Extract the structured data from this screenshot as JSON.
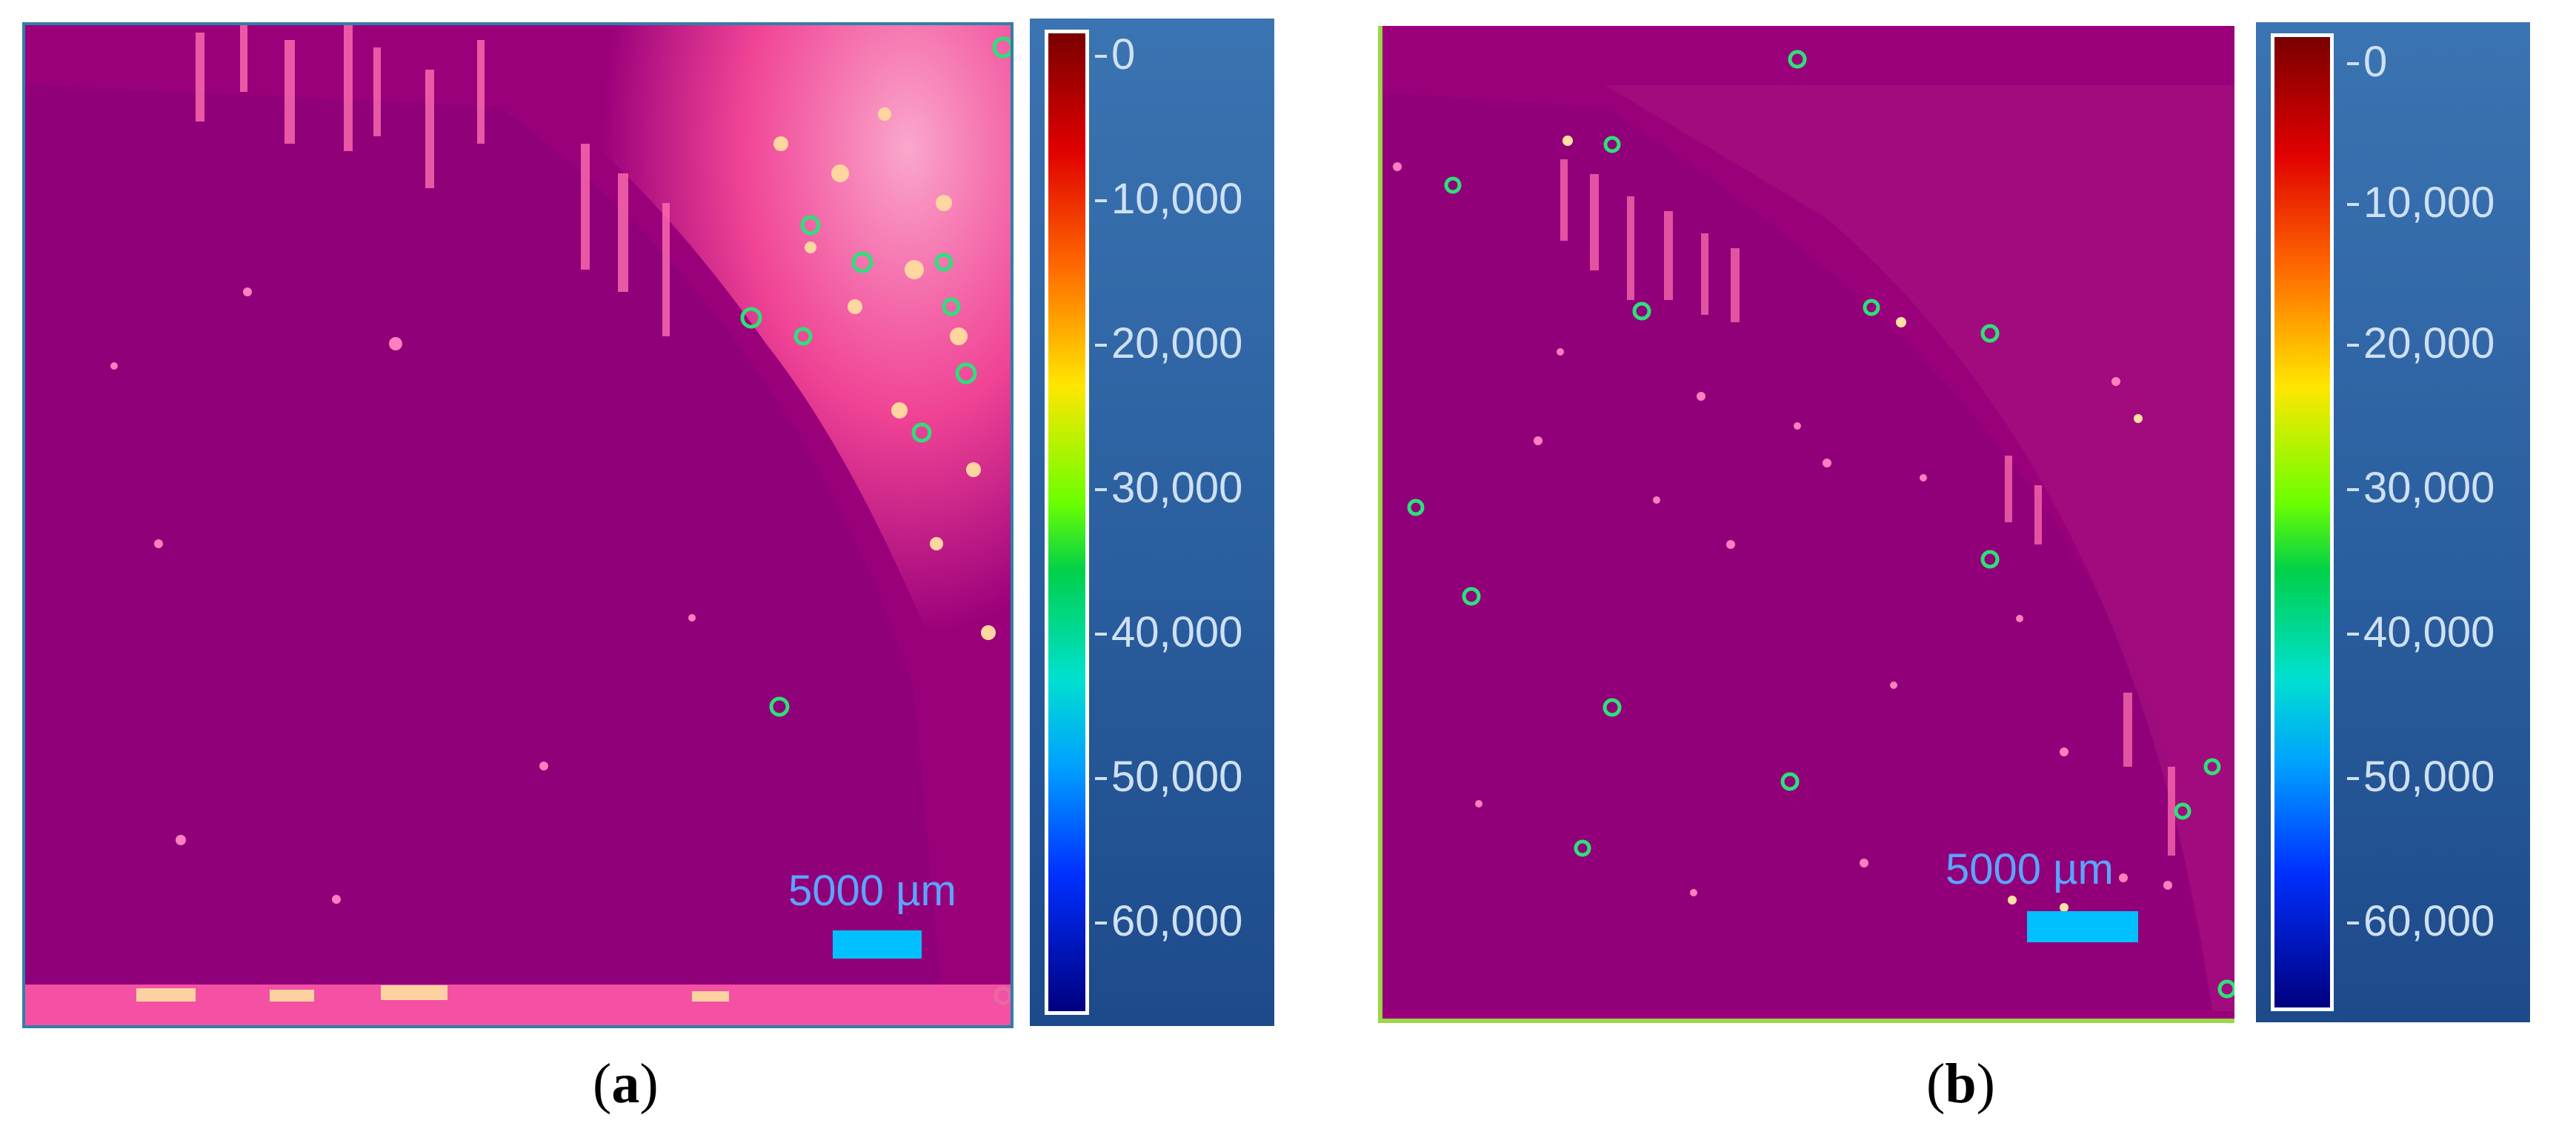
{
  "panels": [
    {
      "id": "a",
      "caption_letter": "a",
      "scale_bar_label": "5000 µm",
      "colorbar_ticks": [
        "0",
        "10,000",
        "20,000",
        "30,000",
        "40,000",
        "50,000",
        "60,000"
      ]
    },
    {
      "id": "b",
      "caption_letter": "b",
      "scale_bar_label": "5000 µm",
      "colorbar_ticks": [
        "0",
        "10,000",
        "20,000",
        "30,000",
        "40,000",
        "50,000",
        "60,000"
      ]
    }
  ],
  "colors": {
    "map_background": "#9b007b",
    "hotspot": "#ff5aa8",
    "highlight": "#ffe0a0",
    "ring": "#2ee07a",
    "scale_label": "#5ba4ff",
    "scale_bar": "#00c0ff",
    "colorbar_panel": "#2a5e9e",
    "tick_text": "#cfe0f2"
  }
}
